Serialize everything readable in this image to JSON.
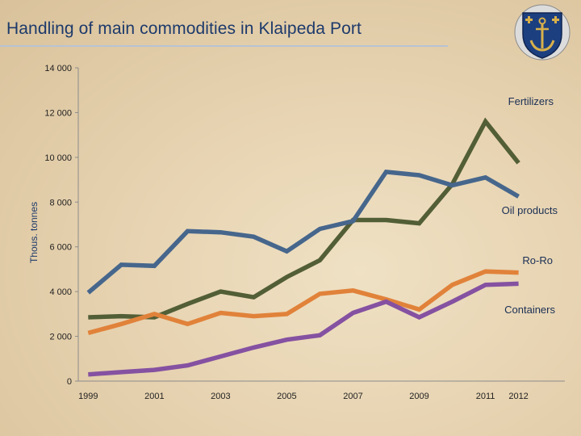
{
  "header": {
    "title": "Handling of main commodities in Klaipeda Port"
  },
  "icons": {
    "logo": "port-anchor-emblem-icon"
  },
  "colors": {
    "Fertilizers": "#525e36",
    "Oil products": "#46668c",
    "Ro-Ro": "#e1823a",
    "Containers": "#8551a1",
    "title": "#1d3a6b"
  },
  "chart_data": {
    "type": "line",
    "title": "Handling of main commodities in Klaipeda Port",
    "xlabel": "",
    "ylabel": "Thous. tonnes",
    "x": [
      1999,
      2000,
      2001,
      2002,
      2003,
      2004,
      2005,
      2006,
      2007,
      2008,
      2009,
      2010,
      2011,
      2012
    ],
    "x_tick_labels": [
      "1999",
      "2001",
      "2003",
      "2005",
      "2007",
      "2009",
      "2011",
      "2012"
    ],
    "x_tick_values": [
      1999,
      2001,
      2003,
      2005,
      2007,
      2009,
      2011,
      2012
    ],
    "xlim": [
      1998.7,
      2013.4
    ],
    "ylim": [
      0,
      14000
    ],
    "y_ticks": [
      0,
      2000,
      4000,
      6000,
      8000,
      10000,
      12000,
      14000
    ],
    "y_tick_labels": [
      "0",
      "2 000",
      "4 000",
      "6 000",
      "8 000",
      "10 000",
      "12 000",
      "14 000"
    ],
    "grid": false,
    "legend": "direct labels at right end of lines",
    "series": [
      {
        "name": "Fertilizers",
        "label": "Fertilizers",
        "values": [
          2850,
          2900,
          2850,
          3450,
          4000,
          3750,
          4650,
          5400,
          7200,
          7200,
          7050,
          8800,
          11600,
          9750
        ]
      },
      {
        "name": "Oil products",
        "label": "Oil products",
        "values": [
          3950,
          5200,
          5150,
          6700,
          6650,
          6450,
          5800,
          6800,
          7150,
          9350,
          9200,
          8750,
          9100,
          8250
        ]
      },
      {
        "name": "Ro-Ro",
        "label": "Ro-Ro",
        "values": [
          2150,
          2550,
          3000,
          2550,
          3050,
          2900,
          3000,
          3900,
          4050,
          3650,
          3200,
          4300,
          4900,
          4850
        ]
      },
      {
        "name": "Containers",
        "label": "Containers",
        "values": [
          300,
          400,
          500,
          700,
          1100,
          1500,
          1850,
          2050,
          3050,
          3550,
          2850,
          3550,
          4300,
          4350
        ]
      }
    ]
  }
}
